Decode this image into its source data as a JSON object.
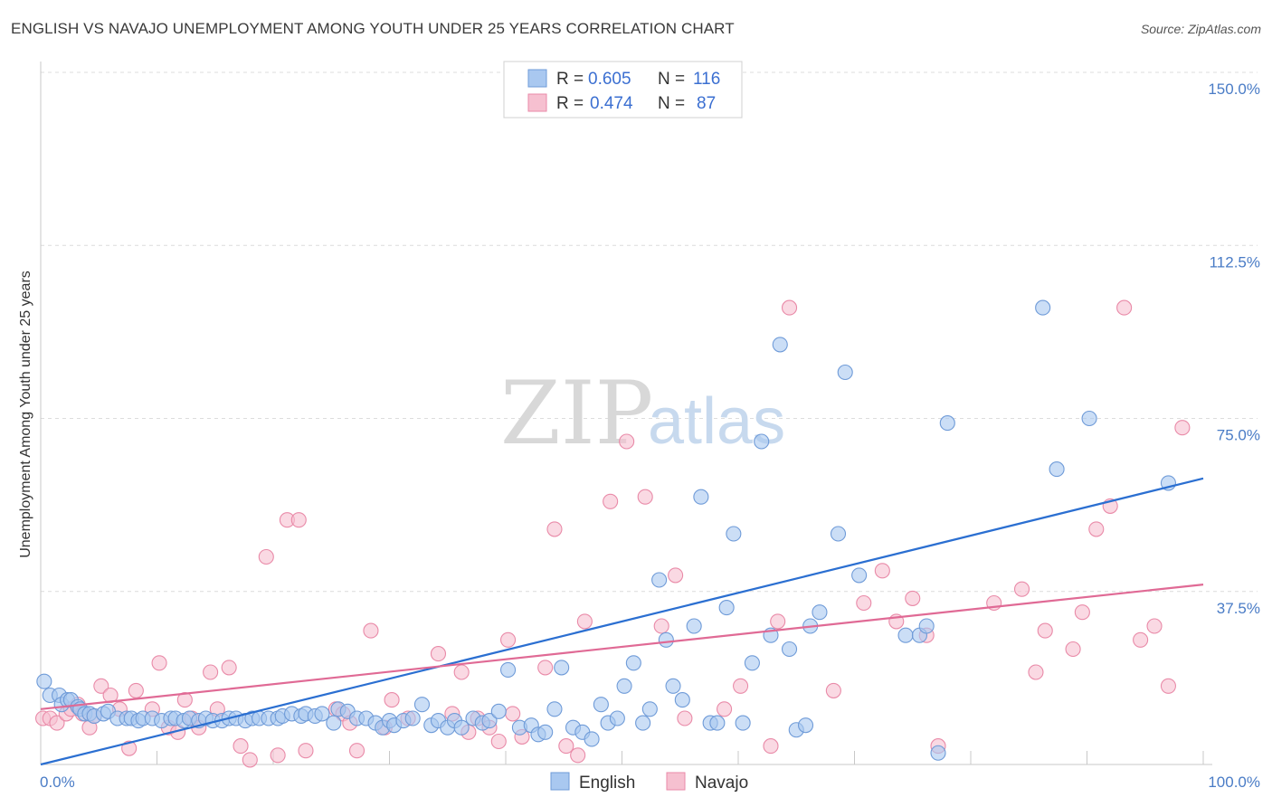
{
  "title": "ENGLISH VS NAVAJO UNEMPLOYMENT AMONG YOUTH UNDER 25 YEARS CORRELATION CHART",
  "source": "Source: ZipAtlas.com",
  "watermark": {
    "zip": "ZIP",
    "atlas": "atlas"
  },
  "colors": {
    "english_fill": "#a9c8f0",
    "english_stroke": "#6f9bd8",
    "english_line": "#2b6fd1",
    "navajo_fill": "#f6c0d0",
    "navajo_stroke": "#e98aa8",
    "navajo_line": "#e06a95",
    "axis_text": "#4a7cc6",
    "grid": "#dcdcdc"
  },
  "legend": {
    "rows": [
      {
        "r_label": "R = ",
        "r_value": "0.605",
        "n_label": "N = ",
        "n_value": "116",
        "series": "english"
      },
      {
        "r_label": "R = ",
        "r_value": "0.474",
        "n_label": "N = ",
        "n_value": "87",
        "series": "navajo"
      }
    ]
  },
  "bottom_legend": [
    {
      "label": "English",
      "series": "english"
    },
    {
      "label": "Navajo",
      "series": "navajo"
    }
  ],
  "chart_data": {
    "type": "scatter",
    "title": "ENGLISH VS NAVAJO UNEMPLOYMENT AMONG YOUTH UNDER 25 YEARS CORRELATION CHART",
    "xlabel": "",
    "ylabel": "Unemployment Among Youth under 25 years",
    "xlim": [
      0,
      100
    ],
    "ylim": [
      0,
      150
    ],
    "x_tick_labels": {
      "min": "0.0%",
      "max": "100.0%"
    },
    "y_ticks": [
      {
        "value": 37.5,
        "label": "37.5%"
      },
      {
        "value": 75,
        "label": "75.0%"
      },
      {
        "value": 112.5,
        "label": "112.5%"
      },
      {
        "value": 150,
        "label": "150.0%"
      }
    ],
    "grid": true,
    "legend_position": "top-center",
    "series": [
      {
        "name": "English",
        "trend": {
          "x": [
            0,
            100
          ],
          "y": [
            0,
            62
          ]
        },
        "points": [
          [
            0.3,
            18
          ],
          [
            0.8,
            15
          ],
          [
            1.6,
            15
          ],
          [
            1.8,
            13
          ],
          [
            2.3,
            14
          ],
          [
            2.6,
            14
          ],
          [
            3.2,
            12.5
          ],
          [
            3.4,
            12
          ],
          [
            3.8,
            11
          ],
          [
            4.2,
            11
          ],
          [
            4.6,
            10.5
          ],
          [
            5.4,
            11
          ],
          [
            5.8,
            11.5
          ],
          [
            6.6,
            10
          ],
          [
            7.4,
            10
          ],
          [
            7.8,
            10
          ],
          [
            8.4,
            9.5
          ],
          [
            8.8,
            10
          ],
          [
            9.6,
            10
          ],
          [
            10.4,
            9.5
          ],
          [
            11.2,
            10
          ],
          [
            11.6,
            10
          ],
          [
            12.3,
            9.5
          ],
          [
            12.8,
            10
          ],
          [
            13.6,
            9.5
          ],
          [
            14.2,
            10
          ],
          [
            14.8,
            9.5
          ],
          [
            15.6,
            9.5
          ],
          [
            16.2,
            10
          ],
          [
            16.8,
            10
          ],
          [
            17.6,
            9.5
          ],
          [
            18.2,
            10
          ],
          [
            18.8,
            10
          ],
          [
            19.6,
            10
          ],
          [
            20.4,
            10
          ],
          [
            20.8,
            10.5
          ],
          [
            21.6,
            11
          ],
          [
            22.4,
            10.5
          ],
          [
            22.8,
            11
          ],
          [
            23.6,
            10.5
          ],
          [
            24.2,
            11
          ],
          [
            25.2,
            9
          ],
          [
            25.6,
            12
          ],
          [
            26.4,
            11.5
          ],
          [
            27.2,
            10
          ],
          [
            28,
            10
          ],
          [
            28.8,
            9
          ],
          [
            29.4,
            8
          ],
          [
            30,
            9.5
          ],
          [
            30.4,
            8.5
          ],
          [
            31.2,
            9.5
          ],
          [
            32,
            10
          ],
          [
            32.8,
            13
          ],
          [
            33.6,
            8.5
          ],
          [
            34.2,
            9.5
          ],
          [
            35,
            8
          ],
          [
            35.6,
            9.5
          ],
          [
            36.2,
            8
          ],
          [
            37.2,
            10
          ],
          [
            38,
            9
          ],
          [
            38.6,
            9.5
          ],
          [
            39.4,
            11.5
          ],
          [
            40.2,
            20.5
          ],
          [
            41.2,
            8
          ],
          [
            42.2,
            8.5
          ],
          [
            42.8,
            6.5
          ],
          [
            43.4,
            7
          ],
          [
            44.2,
            12
          ],
          [
            44.8,
            21
          ],
          [
            45.8,
            8
          ],
          [
            46.6,
            7
          ],
          [
            47.4,
            5.5
          ],
          [
            48.2,
            13
          ],
          [
            48.8,
            9
          ],
          [
            49.6,
            10
          ],
          [
            50.2,
            17
          ],
          [
            51,
            22
          ],
          [
            51.8,
            9
          ],
          [
            52.4,
            12
          ],
          [
            53.2,
            40
          ],
          [
            53.8,
            27
          ],
          [
            54.4,
            17
          ],
          [
            55.2,
            14
          ],
          [
            56.2,
            30
          ],
          [
            56.8,
            58
          ],
          [
            57.6,
            9
          ],
          [
            58.2,
            9
          ],
          [
            59,
            34
          ],
          [
            59.6,
            50
          ],
          [
            60.4,
            9
          ],
          [
            61.2,
            22
          ],
          [
            62,
            70
          ],
          [
            62.8,
            28
          ],
          [
            63.6,
            91
          ],
          [
            64.4,
            25
          ],
          [
            65,
            7.5
          ],
          [
            65.8,
            8.5
          ],
          [
            66.2,
            30
          ],
          [
            67,
            33
          ],
          [
            68.6,
            50
          ],
          [
            69.2,
            85
          ],
          [
            70.4,
            41
          ],
          [
            74.4,
            28
          ],
          [
            75.6,
            28
          ],
          [
            76.2,
            30
          ],
          [
            77.2,
            2.5
          ],
          [
            78,
            74
          ],
          [
            86.2,
            99
          ],
          [
            87.4,
            64
          ],
          [
            90.2,
            75
          ],
          [
            97,
            61
          ]
        ]
      },
      {
        "name": "Navajo",
        "trend": {
          "x": [
            0,
            100
          ],
          "y": [
            12,
            39
          ]
        },
        "points": [
          [
            0.2,
            10
          ],
          [
            0.8,
            10
          ],
          [
            1.4,
            9
          ],
          [
            2.2,
            11
          ],
          [
            2.6,
            12
          ],
          [
            3.2,
            13
          ],
          [
            3.6,
            11
          ],
          [
            4.2,
            8
          ],
          [
            4.6,
            10.5
          ],
          [
            5.2,
            17
          ],
          [
            6,
            15
          ],
          [
            6.8,
            12
          ],
          [
            7.6,
            3.5
          ],
          [
            8.2,
            16
          ],
          [
            9.6,
            12
          ],
          [
            10.2,
            22
          ],
          [
            11,
            8
          ],
          [
            11.8,
            7
          ],
          [
            12.4,
            14
          ],
          [
            13,
            10
          ],
          [
            13.6,
            8
          ],
          [
            14.6,
            20
          ],
          [
            15.2,
            12
          ],
          [
            16.2,
            21
          ],
          [
            17.2,
            4
          ],
          [
            18,
            1
          ],
          [
            19.4,
            45
          ],
          [
            20.4,
            2
          ],
          [
            21.2,
            53
          ],
          [
            22.2,
            53
          ],
          [
            22.8,
            3
          ],
          [
            25.4,
            12
          ],
          [
            26,
            11
          ],
          [
            26.6,
            9
          ],
          [
            27.2,
            3
          ],
          [
            28.4,
            29
          ],
          [
            29.6,
            8
          ],
          [
            30.2,
            14
          ],
          [
            31.6,
            10
          ],
          [
            34.2,
            24
          ],
          [
            35.4,
            11
          ],
          [
            36.2,
            20
          ],
          [
            36.8,
            7
          ],
          [
            37.6,
            10
          ],
          [
            38.6,
            8
          ],
          [
            39.4,
            5
          ],
          [
            40.2,
            27
          ],
          [
            40.6,
            11
          ],
          [
            41.4,
            6
          ],
          [
            43.4,
            21
          ],
          [
            44.2,
            51
          ],
          [
            45.2,
            4
          ],
          [
            46.2,
            2
          ],
          [
            46.8,
            31
          ],
          [
            49,
            57
          ],
          [
            50.4,
            70
          ],
          [
            52,
            58
          ],
          [
            53.4,
            30
          ],
          [
            54.6,
            41
          ],
          [
            55.4,
            10
          ],
          [
            58.8,
            12
          ],
          [
            60.2,
            17
          ],
          [
            62.8,
            4
          ],
          [
            63.4,
            31
          ],
          [
            64.4,
            99
          ],
          [
            68.2,
            16
          ],
          [
            70.8,
            35
          ],
          [
            72.4,
            42
          ],
          [
            73.6,
            31
          ],
          [
            75,
            36
          ],
          [
            76.2,
            28
          ],
          [
            77.2,
            4
          ],
          [
            82,
            35
          ],
          [
            84.4,
            38
          ],
          [
            85.6,
            20
          ],
          [
            86.4,
            29
          ],
          [
            88.8,
            25
          ],
          [
            89.6,
            33
          ],
          [
            90.8,
            51
          ],
          [
            92,
            56
          ],
          [
            93.2,
            99
          ],
          [
            94.6,
            27
          ],
          [
            95.8,
            30
          ],
          [
            97,
            17
          ],
          [
            98.2,
            73
          ]
        ]
      }
    ]
  }
}
